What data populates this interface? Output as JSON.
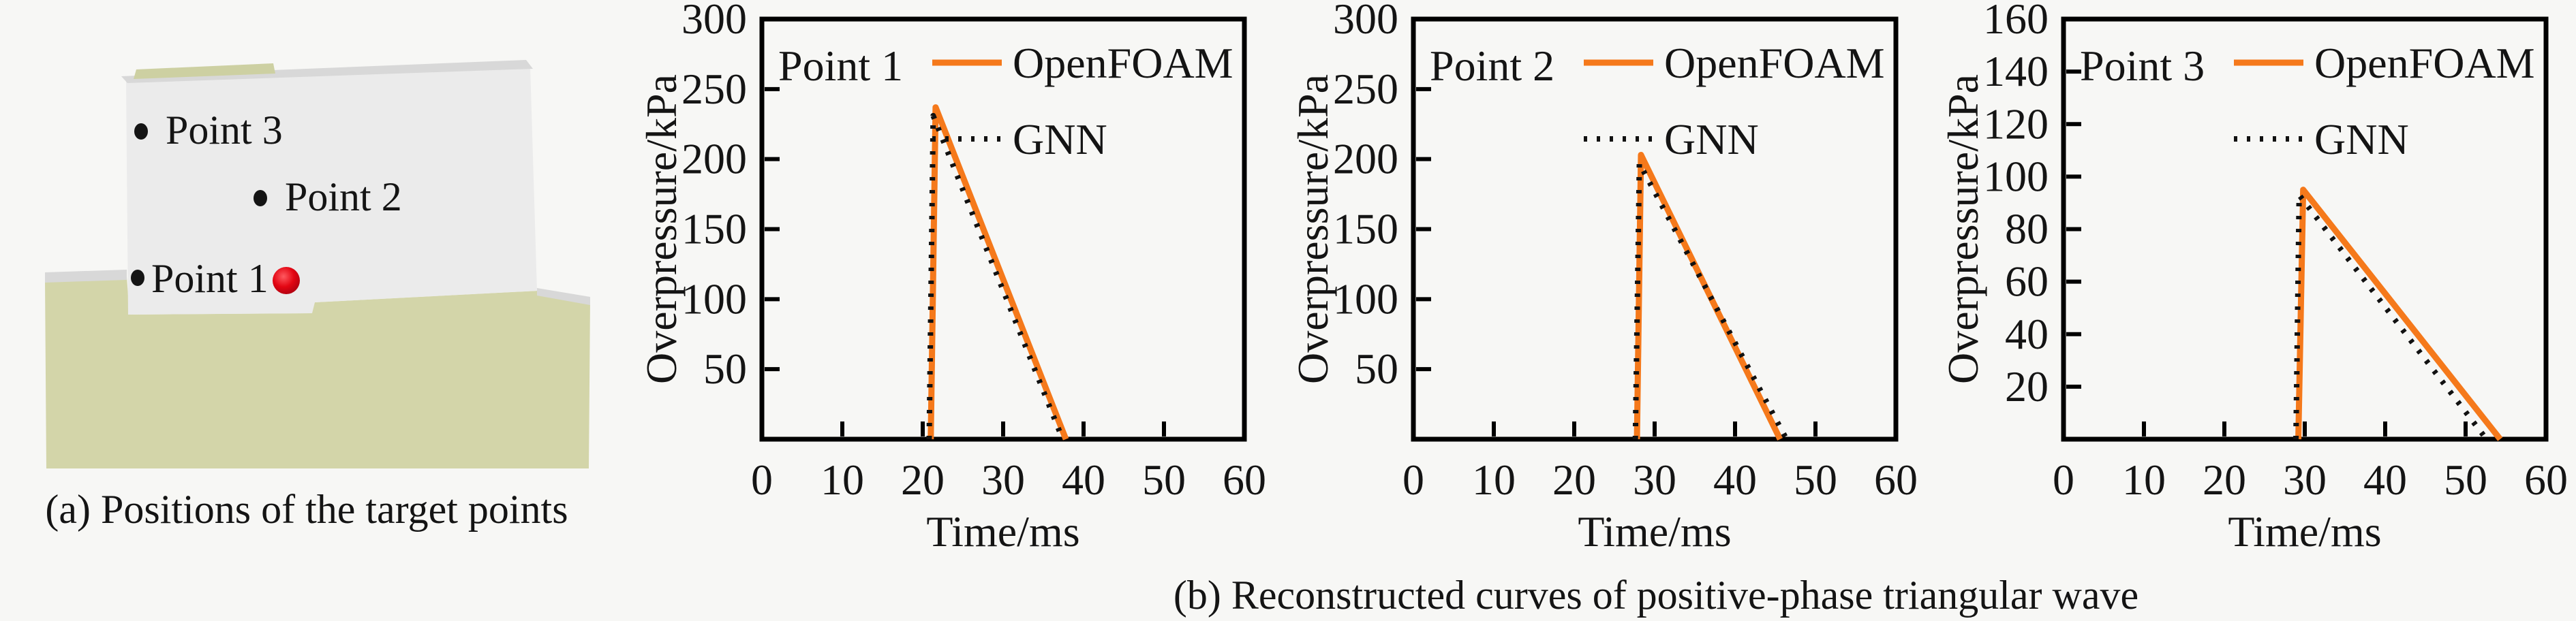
{
  "page": {
    "background": "#f7f7f5",
    "text_color": "#141414"
  },
  "panel_a": {
    "caption": "(a) Positions of the target points",
    "points": [
      {
        "label": "Point 3"
      },
      {
        "label": "Point 2"
      },
      {
        "label": "Point 1"
      }
    ],
    "scene_colors": {
      "ground": "#d3d5a9",
      "ground_edge": "#d8d8d8",
      "box_face": "#ebebeb",
      "box_face_shade": "#e0e0e0",
      "box_top": "#d8d8d8",
      "box_top_olive": "#cdd0a2",
      "marker": "#141414",
      "red_marker": "#e30613"
    }
  },
  "panel_b": {
    "caption": "(b) Reconstructed curves of positive-phase triangular wave"
  },
  "chart_data": [
    {
      "type": "line",
      "title": "Point 1",
      "xlabel": "Time/ms",
      "ylabel": "Overpressure/kPa",
      "xlim": [
        0,
        60
      ],
      "ylim": [
        0,
        300
      ],
      "xticks": [
        0,
        10,
        20,
        30,
        40,
        50,
        60
      ],
      "yticks": [
        50,
        100,
        150,
        200,
        250,
        300
      ],
      "grid": false,
      "legend_position": "top-right",
      "series": [
        {
          "name": "OpenFOAM",
          "style": "solid",
          "color": "#f5791b",
          "points": [
            [
              21.0,
              0
            ],
            [
              21.6,
              237
            ],
            [
              37.8,
              0
            ]
          ]
        },
        {
          "name": "GNN",
          "style": "dotted",
          "color": "#111111",
          "points": [
            [
              20.8,
              0
            ],
            [
              21.3,
              231
            ],
            [
              37.4,
              0
            ]
          ]
        }
      ]
    },
    {
      "type": "line",
      "title": "Point 2",
      "xlabel": "Time/ms",
      "ylabel": "Overpressure/kPa",
      "xlim": [
        0,
        60
      ],
      "ylim": [
        0,
        300
      ],
      "xticks": [
        0,
        10,
        20,
        30,
        40,
        50,
        60
      ],
      "yticks": [
        50,
        100,
        150,
        200,
        250,
        300
      ],
      "grid": false,
      "legend_position": "top-right",
      "series": [
        {
          "name": "OpenFOAM",
          "style": "solid",
          "color": "#f5791b",
          "points": [
            [
              27.8,
              0
            ],
            [
              28.3,
              203
            ],
            [
              45.6,
              0
            ]
          ]
        },
        {
          "name": "GNN",
          "style": "dotted",
          "color": "#111111",
          "points": [
            [
              27.6,
              0
            ],
            [
              28.1,
              197
            ],
            [
              46.4,
              0
            ]
          ]
        }
      ]
    },
    {
      "type": "line",
      "title": "Point 3",
      "xlabel": "Time/ms",
      "ylabel": "Overpressure/kPa",
      "xlim": [
        0,
        60
      ],
      "ylim": [
        0,
        160
      ],
      "xticks": [
        0,
        10,
        20,
        30,
        40,
        50,
        60
      ],
      "yticks": [
        20,
        40,
        60,
        80,
        100,
        120,
        140,
        160
      ],
      "grid": false,
      "legend_position": "top-right",
      "series": [
        {
          "name": "OpenFOAM",
          "style": "solid",
          "color": "#f5791b",
          "points": [
            [
              29.2,
              0
            ],
            [
              29.8,
              95
            ],
            [
              54.3,
              0
            ]
          ]
        },
        {
          "name": "GNN",
          "style": "dotted",
          "color": "#111111",
          "points": [
            [
              28.9,
              0
            ],
            [
              29.3,
              93
            ],
            [
              52.6,
              0
            ]
          ]
        }
      ]
    }
  ]
}
